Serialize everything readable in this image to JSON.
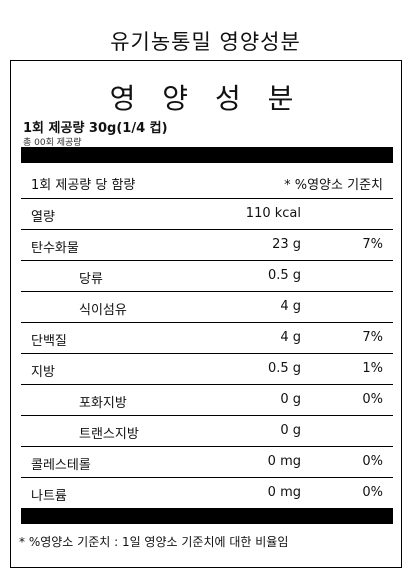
{
  "page_title": "유기농통밀 영양성분",
  "panel": {
    "title": "영 양 성 분",
    "serving_size": "1회 제공량 30g(1/4 컵)",
    "servings_total": "총 00회 제공량",
    "header_left": "1회 제공량 당 함량",
    "header_right": "* %영양소 기준치"
  },
  "rows": [
    {
      "name": "열량",
      "amount": "110 kcal",
      "percent": "",
      "indent": false
    },
    {
      "name": "탄수화물",
      "amount": "23 g",
      "percent": "7%",
      "indent": false
    },
    {
      "name": "당류",
      "amount": "0.5 g",
      "percent": "",
      "indent": true
    },
    {
      "name": "식이섬유",
      "amount": "4 g",
      "percent": "",
      "indent": true
    },
    {
      "name": "단백질",
      "amount": "4 g",
      "percent": "7%",
      "indent": false
    },
    {
      "name": "지방",
      "amount": "0.5 g",
      "percent": "1%",
      "indent": false
    },
    {
      "name": "포화지방",
      "amount": "0 g",
      "percent": "0%",
      "indent": true
    },
    {
      "name": "트랜스지방",
      "amount": "0 g",
      "percent": "",
      "indent": true
    },
    {
      "name": "콜레스테롤",
      "amount": "0 mg",
      "percent": "0%",
      "indent": false
    },
    {
      "name": "나트륨",
      "amount": "0 mg",
      "percent": "0%",
      "indent": false
    }
  ],
  "footnote": "* %영양소 기준치 : 1일 영양소 기준치에 대한 비율임"
}
